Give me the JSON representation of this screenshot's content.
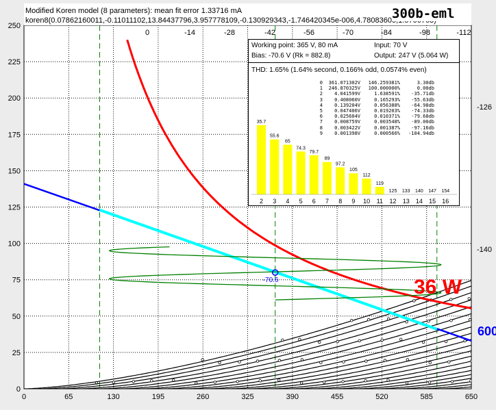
{
  "header": {
    "title": "Modified Koren model (8 parameters): mean fit error 1.33716 mA",
    "params": "koren8(0.07862160011,-0.11011102,13.84437796,3.957778109,-0.130929343,-1.746420345e-006,4.78083605,1.5706763)",
    "tube": "300b-eml"
  },
  "panel": {
    "working_point": "Working point: 365 V, 80 mA",
    "input": "Input: 70 V",
    "bias": "Bias: -70.6 V (Rk = 882.8)",
    "output": "Output: 247 V (5.064 W)",
    "thd": "THD: 1.65% (1.64% second, 0.166% odd, 0.0574% even)",
    "table": [
      [
        "0",
        "361.071302V",
        "146.259381%",
        "3.30db"
      ],
      [
        "1",
        "246.870325V",
        "100.000000%",
        "0.00db"
      ],
      [
        "2",
        "4.041599V",
        "1.638591%",
        "-35.71db"
      ],
      [
        "3",
        "0.408060V",
        "0.165293%",
        "-55.63db"
      ],
      [
        "4",
        "0.139204V",
        "0.056388%",
        "-64.98db"
      ],
      [
        "5",
        "0.047406V",
        "0.019203%",
        "-74.33db"
      ],
      [
        "6",
        "0.025604V",
        "0.010371%",
        "-79.68db"
      ],
      [
        "7",
        "0.008759V",
        "0.003548%",
        "-89.00db"
      ],
      [
        "8",
        "0.003422V",
        "0.001387%",
        "-97.16db"
      ],
      [
        "9",
        "0.001398V",
        "0.000566%",
        "-104.94db"
      ]
    ],
    "harmonics": {
      "orders": [
        "2",
        "3",
        "4",
        "5",
        "6",
        "7",
        "8",
        "9",
        "10",
        "11",
        "12",
        "13",
        "14",
        "15",
        "16"
      ],
      "db_labels": [
        "35.7",
        "55.6",
        "65",
        "74.3",
        "79.7",
        "89",
        "97.2",
        "105",
        "112",
        "119",
        "125",
        "133",
        "140",
        "147",
        "154"
      ],
      "levels": [
        0.92,
        0.73,
        0.66,
        0.57,
        0.52,
        0.43,
        0.36,
        0.28,
        0.21,
        0.1,
        0,
        0,
        0,
        0,
        0
      ]
    }
  },
  "annotations": {
    "power": "36 W",
    "load": "600",
    "bias_label": "-70.6"
  },
  "colors": {
    "background": "#ffffff",
    "page": "#ececec",
    "curve": "#000000",
    "power_curve": "#ff0000",
    "loadline": "#0000ff",
    "loadline_swing": "#00ffff",
    "signal": "#008000",
    "bars": "#ffff00",
    "guide": "#008000"
  },
  "chart_data": {
    "type": "line",
    "title": "Modified Koren model (8 parameters): mean fit error 1.33716 mA",
    "xlabel": "",
    "ylabel": "",
    "xlim": [
      0,
      650
    ],
    "ylim": [
      0,
      250
    ],
    "x_ticks": [
      "0",
      "65",
      "130",
      "195",
      "260",
      "325",
      "390",
      "455",
      "520",
      "585",
      "650"
    ],
    "y_ticks": [
      "0",
      "25",
      "50",
      "75",
      "100",
      "125",
      "150",
      "175",
      "200",
      "225",
      "250"
    ],
    "grid": true,
    "grid_curve_labels": [
      "0",
      "-14",
      "-28",
      "-42",
      "-56",
      "-70",
      "-84",
      "-98",
      "-112",
      "-126",
      "-140"
    ],
    "grid_voltages": [
      0,
      -7,
      -14,
      -21,
      -28,
      -35,
      -42,
      -49,
      -56,
      -63,
      -70,
      -77,
      -84,
      -91,
      -98,
      -105,
      -112,
      -119,
      -126,
      -133,
      -140
    ],
    "plate_curves_x_at_0mA": [
      0,
      23,
      50,
      80,
      110,
      141,
      172,
      203,
      234,
      265,
      296,
      327,
      358,
      389,
      420,
      451,
      482,
      513,
      544,
      575,
      606
    ],
    "power_curve": {
      "name": "36 W",
      "watts": 36
    },
    "loadline": {
      "name": "600",
      "points": [
        [
          0,
          141
        ],
        [
          650,
          33
        ]
      ]
    },
    "swing_segment": [
      [
        110,
        123
      ],
      [
        600,
        41
      ]
    ],
    "operating_point": {
      "x": 365,
      "y": 80,
      "label": "-70.6"
    },
    "guide_lines_x": [
      110,
      365,
      600
    ]
  }
}
